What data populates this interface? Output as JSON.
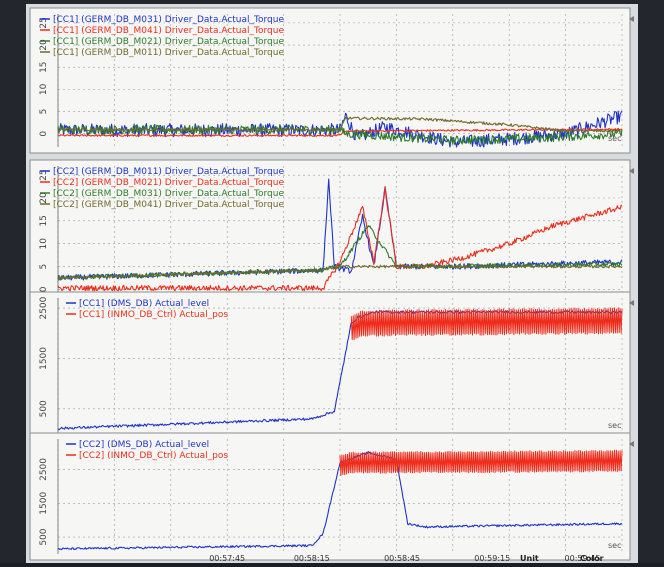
{
  "window": {
    "footer_columns": [
      "Unit",
      "Color"
    ]
  },
  "colors": {
    "background": "#f6f7f4",
    "grid": "#9c9c9c",
    "blue": "#1f33c9",
    "red": "#ee2c1c",
    "green": "#2f7a2c",
    "olive": "#6f6a2c"
  },
  "chart_data": [
    {
      "type": "line",
      "panel": 1,
      "y_ticks": [
        "0",
        "5",
        "10",
        "15",
        "20",
        "25"
      ],
      "ylim": [
        -3,
        27
      ],
      "x_unit": "sec",
      "legend": [
        {
          "label": "[CC1] (GERM_DB_M031) Driver_Data.Actual_Torque",
          "color": "blue"
        },
        {
          "label": "[CC1] (GERM_DB_M041) Driver_Data.Actual_Torque",
          "color": "red"
        },
        {
          "label": "[CC1] (GERM_DB_M021) Driver_Data.Actual_Torque",
          "color": "green"
        },
        {
          "label": "[CC1] (GERM_DB_M011) Driver_Data.Actual_Torque",
          "color": "olive"
        }
      ],
      "series": [
        {
          "name": "[CC1] (GERM_DB_M031) Driver_Data.Actual_Torque",
          "color": "blue",
          "noise": 1.5,
          "points": [
            [
              0,
              0.8
            ],
            [
              0.5,
              0.8
            ],
            [
              0.51,
              4
            ],
            [
              0.53,
              -1
            ],
            [
              0.58,
              1.5
            ],
            [
              0.7,
              -2
            ],
            [
              0.8,
              -1.2
            ],
            [
              0.9,
              0
            ],
            [
              1,
              4
            ]
          ]
        },
        {
          "name": "[CC1] (GERM_DB_M041) Driver_Data.Actual_Torque",
          "color": "red",
          "noise": 0.2,
          "points": [
            [
              0,
              -0.4
            ],
            [
              0.5,
              -0.4
            ],
            [
              0.51,
              0.6
            ],
            [
              1,
              1
            ]
          ]
        },
        {
          "name": "[CC1] (GERM_DB_M021) Driver_Data.Actual_Torque",
          "color": "green",
          "noise": 1.0,
          "points": [
            [
              0,
              0.9
            ],
            [
              0.5,
              0.9
            ],
            [
              0.51,
              0
            ],
            [
              0.7,
              -1.5
            ],
            [
              0.85,
              -1
            ],
            [
              1,
              0
            ]
          ]
        },
        {
          "name": "[CC1] (GERM_DB_M011) Driver_Data.Actual_Torque",
          "color": "olive",
          "noise": 0.3,
          "points": [
            [
              0,
              0.9
            ],
            [
              0.5,
              0.9
            ],
            [
              0.51,
              3.5
            ],
            [
              0.65,
              3.3
            ],
            [
              0.8,
              2
            ],
            [
              0.9,
              0.6
            ],
            [
              1,
              0.6
            ]
          ]
        }
      ]
    },
    {
      "type": "line",
      "panel": 2,
      "y_ticks": [
        "0",
        "5",
        "10",
        "15",
        "20",
        "25"
      ],
      "ylim": [
        -1,
        27
      ],
      "legend": [
        {
          "label": "[CC2] (GERM_DB_M011) Driver_Data.Actual_Torque",
          "color": "blue"
        },
        {
          "label": "[CC2] (GERM_DB_M021) Driver_Data.Actual_Torque",
          "color": "red"
        },
        {
          "label": "[CC2] (GERM_DB_M031) Driver_Data.Actual_Torque",
          "color": "green"
        },
        {
          "label": "[CC2] (GERM_DB_M041) Driver_Data.Actual_Torque",
          "color": "olive"
        }
      ],
      "series": [
        {
          "name": "[CC2] (GERM_DB_M011) Driver_Data.Actual_Torque",
          "color": "blue",
          "noise": 0.6,
          "points": [
            [
              0,
              2.5
            ],
            [
              0.47,
              4.2
            ],
            [
              0.48,
              24
            ],
            [
              0.49,
              5
            ],
            [
              0.52,
              4
            ],
            [
              0.54,
              16
            ],
            [
              0.56,
              5
            ],
            [
              0.58,
              22
            ],
            [
              0.6,
              5
            ],
            [
              0.7,
              5
            ],
            [
              0.85,
              5.5
            ],
            [
              1,
              6
            ]
          ]
        },
        {
          "name": "[CC2] (GERM_DB_M021) Driver_Data.Actual_Torque",
          "color": "red",
          "noise": 0.6,
          "points": [
            [
              0,
              0.3
            ],
            [
              0.47,
              0.3
            ],
            [
              0.5,
              6
            ],
            [
              0.54,
              18
            ],
            [
              0.56,
              6
            ],
            [
              0.58,
              22
            ],
            [
              0.6,
              5
            ],
            [
              0.65,
              5
            ],
            [
              0.72,
              7
            ],
            [
              0.8,
              10
            ],
            [
              0.88,
              14
            ],
            [
              1,
              18
            ]
          ]
        },
        {
          "name": "[CC2] (GERM_DB_M031) Driver_Data.Actual_Torque",
          "color": "green",
          "noise": 0.5,
          "points": [
            [
              0,
              2.5
            ],
            [
              0.47,
              4.3
            ],
            [
              0.5,
              5
            ],
            [
              0.55,
              14
            ],
            [
              0.6,
              5
            ],
            [
              1,
              5.5
            ]
          ]
        },
        {
          "name": "[CC2] (GERM_DB_M041) Driver_Data.Actual_Torque",
          "color": "olive",
          "noise": 0.3,
          "points": [
            [
              0,
              2.5
            ],
            [
              0.47,
              4.3
            ],
            [
              0.5,
              5
            ],
            [
              1,
              5
            ]
          ]
        }
      ]
    },
    {
      "type": "line",
      "panel": 3,
      "y_ticks": [
        "500",
        "1500",
        "2500"
      ],
      "ylim": [
        0,
        2700
      ],
      "x_unit": "sec",
      "legend": [
        {
          "label": "[CC1] (DMS_DB) Actual_level",
          "color": "blue"
        },
        {
          "label": "[CC1] (INMO_DB_Ctrl) Actual_pos",
          "color": "red"
        }
      ],
      "series": [
        {
          "name": "[CC1] (DMS_DB) Actual_level",
          "color": "blue",
          "noise": 25,
          "points": [
            [
              0,
              110
            ],
            [
              0.45,
              300
            ],
            [
              0.49,
              450
            ],
            [
              0.52,
              2200
            ],
            [
              0.53,
              2300
            ],
            [
              0.56,
              2420
            ],
            [
              1,
              2420
            ]
          ]
        },
        {
          "name": "[CC1] (INMO_DB_Ctrl) Actual_pos",
          "color": "red",
          "osc": true,
          "points": [
            [
              0.52,
              2100
            ],
            [
              0.54,
              2200
            ],
            [
              1,
              2250
            ]
          ],
          "amplitude": 260
        }
      ]
    },
    {
      "type": "line",
      "panel": 4,
      "y_ticks": [
        "500",
        "1500",
        "2500"
      ],
      "ylim": [
        0,
        3400
      ],
      "x_unit": "sec",
      "x_ticks": [
        "00:57:45",
        "00:58:15",
        "00:58:45",
        "00:59:15",
        "00:59:45"
      ],
      "legend": [
        {
          "label": "[CC2] (DMS_DB) Actual_level",
          "color": "blue"
        },
        {
          "label": "[CC2] (INMO_DB_Ctrl) Actual_pos",
          "color": "red"
        }
      ],
      "series": [
        {
          "name": "[CC2] (DMS_DB) Actual_level",
          "color": "blue",
          "noise": 30,
          "points": [
            [
              0,
              150
            ],
            [
              0.45,
              250
            ],
            [
              0.47,
              600
            ],
            [
              0.5,
              2700
            ],
            [
              0.55,
              3000
            ],
            [
              0.6,
              2800
            ],
            [
              0.62,
              900
            ],
            [
              0.65,
              800
            ],
            [
              1,
              900
            ]
          ]
        },
        {
          "name": "[CC2] (INMO_DB_Ctrl) Actual_pos",
          "color": "red",
          "osc": true,
          "points": [
            [
              0.5,
              2600
            ],
            [
              0.52,
              2700
            ],
            [
              1,
              2750
            ]
          ],
          "amplitude": 320
        }
      ]
    }
  ]
}
